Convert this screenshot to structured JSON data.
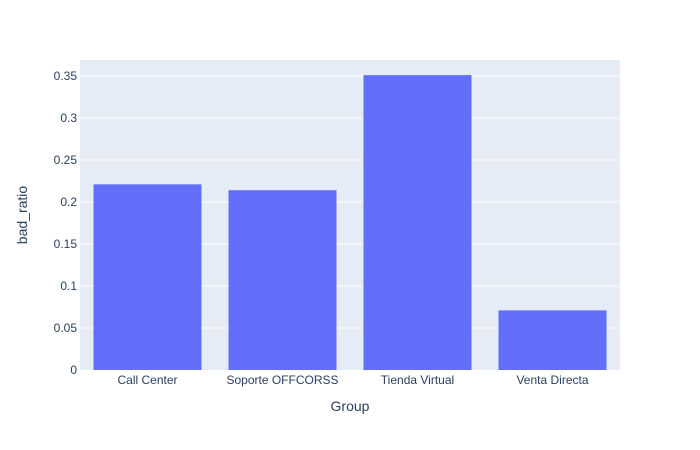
{
  "chart_data": {
    "type": "bar",
    "categories": [
      "Call Center",
      "Soporte OFFCORSS",
      "Tienda Virtual",
      "Venta Directa"
    ],
    "values": [
      0.221,
      0.214,
      0.351,
      0.071
    ],
    "xlabel": "Group",
    "ylabel": "bad_ratio",
    "ylim": [
      0,
      0.369
    ],
    "yticks": [
      0,
      0.05,
      0.1,
      0.15,
      0.2,
      0.25,
      0.3,
      0.35
    ],
    "ytick_labels": [
      "0",
      "0.05",
      "0.1",
      "0.15",
      "0.2",
      "0.25",
      "0.3",
      "0.35"
    ],
    "grid": true,
    "colors": {
      "bar": "#636efa",
      "plot_bg": "#e5ecf6",
      "grid": "#ffffff",
      "text": "#2a3f5f"
    }
  }
}
